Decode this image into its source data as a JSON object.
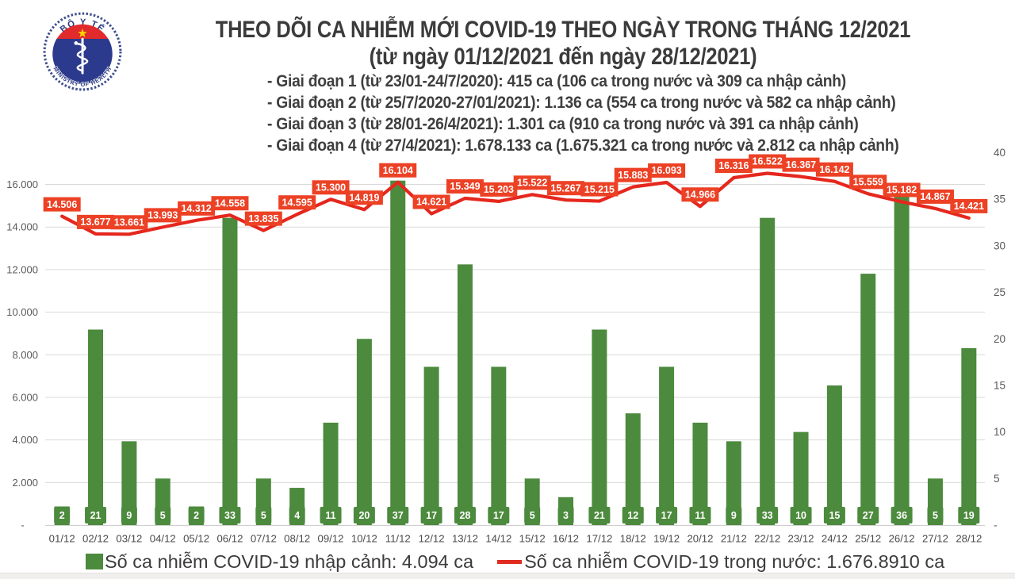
{
  "logo": {
    "top_text": "BỘ Y TẾ",
    "bottom_text": "MINISTRY OF HEALTH"
  },
  "title": "THEO DÕI CA NHIỄM MỚI COVID-19 THEO NGÀY TRONG THÁNG 12/2021",
  "subtitle": "(từ ngày 01/12/2021 đến ngày 28/12/2021)",
  "notes": [
    "- Giai đoạn 1 (từ 23/01-24/7/2020): 415 ca (106 ca trong nước và 309 ca nhập cảnh)",
    "- Giai đoạn 2 (từ 25/7/2020-27/01/2021): 1.136 ca (554 ca trong nước và 582 ca nhập cảnh)",
    "- Giai đoạn 3 (từ 28/01-26/4/2021): 1.301 ca (910 ca trong nước và 391 ca nhập cảnh)",
    "- Giai đoạn 4 (từ 27/4/2021): 1.678.133 ca (1.675.321 ca trong nước và 2.812 ca nhập cảnh)"
  ],
  "chart_data": {
    "type": "bar+line",
    "categories": [
      "01/12",
      "02/12",
      "03/12",
      "04/12",
      "05/12",
      "06/12",
      "07/12",
      "08/12",
      "09/12",
      "10/12",
      "11/12",
      "12/12",
      "13/12",
      "14/12",
      "15/12",
      "16/12",
      "17/12",
      "18/12",
      "19/12",
      "20/12",
      "21/12",
      "22/12",
      "23/12",
      "24/12",
      "25/12",
      "26/12",
      "27/12",
      "28/12"
    ],
    "series": [
      {
        "name": "Số ca nhiễm COVID-19 nhập cảnh",
        "type": "bar",
        "axis": "right",
        "color": "#4c8a3d",
        "values": [
          2,
          21,
          9,
          5,
          2,
          33,
          5,
          4,
          11,
          20,
          37,
          17,
          28,
          17,
          5,
          3,
          21,
          12,
          17,
          11,
          9,
          33,
          10,
          15,
          27,
          36,
          5,
          19
        ]
      },
      {
        "name": "Số ca nhiễm COVID-19 trong nước",
        "type": "line",
        "axis": "left",
        "color": "#e5271d",
        "label_bg": "#ec4125",
        "values": [
          14506,
          13677,
          13661,
          13993,
          14312,
          14558,
          13835,
          14595,
          15300,
          14819,
          16104,
          14621,
          15349,
          15203,
          15522,
          15267,
          15215,
          15883,
          16093,
          14966,
          16316,
          16522,
          16367,
          16142,
          15559,
          15182,
          14867,
          14421
        ],
        "labels": [
          "14.506",
          "13.677",
          "13.661",
          "13.993",
          "14.312",
          "14.558",
          "13.835",
          "14.595",
          "15.300",
          "14.819",
          "16.104",
          "14.621",
          "15.349",
          "15.203",
          "15.522",
          "15.267",
          "15.215",
          "15.883",
          "16.093",
          "14.966",
          "16.316",
          "16.522",
          "16.367",
          "16.142",
          "15.559",
          "15.182",
          "14.867",
          "14.421"
        ]
      }
    ],
    "left_axis": {
      "max": 16000,
      "labels": [
        "16.000",
        "14.000",
        "12.000",
        "10.000",
        "8.000",
        "6.000",
        "4.000",
        "2.000",
        "-"
      ],
      "values": [
        16000,
        14000,
        12000,
        10000,
        8000,
        6000,
        4000,
        2000,
        0
      ]
    },
    "right_axis": {
      "max": 40,
      "labels": [
        "40",
        "35",
        "30",
        "25",
        "20",
        "15",
        "10",
        "5",
        "-"
      ],
      "values": [
        40,
        35,
        30,
        25,
        20,
        15,
        10,
        5,
        0
      ]
    },
    "grid": true,
    "legend_position": "bottom"
  },
  "legend": {
    "bar_label": "Số ca nhiễm COVID-19 nhập cảnh: 4.094 ca",
    "line_label": "Số ca nhiễm COVID-19 trong nước: 1.676.8910 ca"
  },
  "colors": {
    "bar": "#4c8a3d",
    "line": "#e5271d",
    "line_label_bg": "#ec4125",
    "grid": "#d9d9d9",
    "axis_text": "#595959",
    "title_text": "#3b3b3b"
  }
}
